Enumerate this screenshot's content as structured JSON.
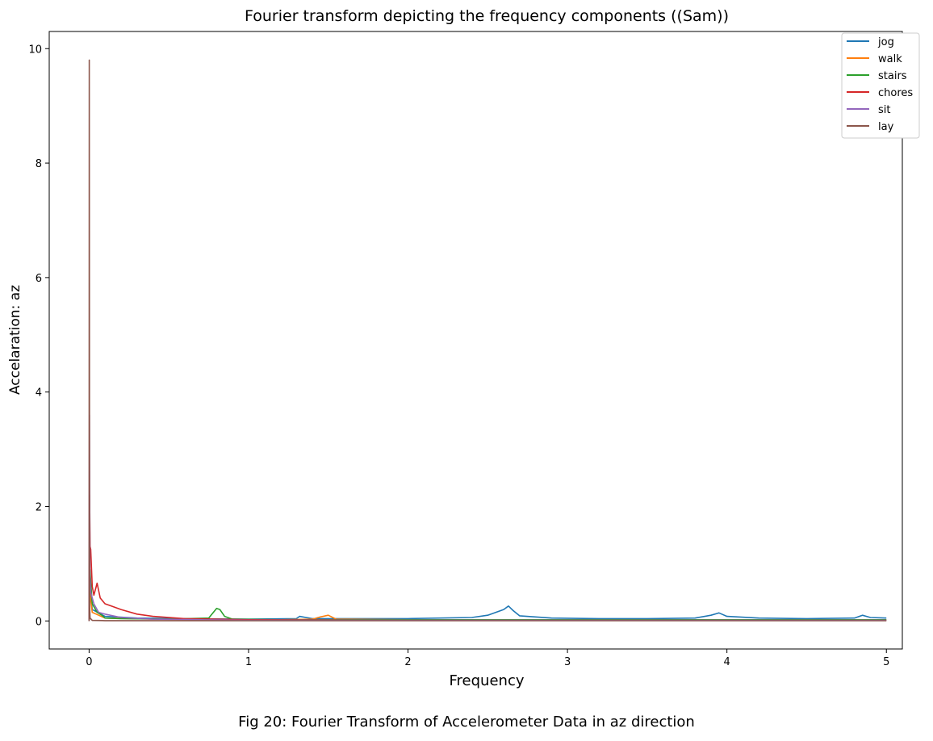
{
  "chart_data": {
    "type": "line",
    "title": "Fourier transform depicting the frequency components ((Sam))",
    "xlabel": "Frequency",
    "ylabel": "Accelaration: az",
    "xlim": [
      -0.25,
      5.1
    ],
    "ylim": [
      -0.49,
      10.3
    ],
    "xticks": [
      0,
      1,
      2,
      3,
      4,
      5
    ],
    "yticks": [
      0,
      2,
      4,
      6,
      8,
      10
    ],
    "grid": false,
    "legend_position": "top-right",
    "series": [
      {
        "name": "jog",
        "color": "#1f77b4",
        "x": [
          0,
          0.005,
          0.02,
          0.1,
          0.3,
          0.6,
          1.0,
          1.3,
          1.32,
          1.4,
          1.5,
          2.0,
          2.4,
          2.5,
          2.6,
          2.63,
          2.66,
          2.7,
          2.9,
          3.2,
          3.5,
          3.8,
          3.9,
          3.95,
          4.0,
          4.2,
          4.5,
          4.8,
          4.85,
          4.9,
          5.0
        ],
        "y": [
          0.0,
          0.6,
          0.2,
          0.08,
          0.05,
          0.04,
          0.03,
          0.04,
          0.08,
          0.04,
          0.04,
          0.04,
          0.06,
          0.1,
          0.2,
          0.26,
          0.18,
          0.09,
          0.05,
          0.04,
          0.04,
          0.05,
          0.1,
          0.14,
          0.08,
          0.05,
          0.04,
          0.05,
          0.1,
          0.06,
          0.05
        ]
      },
      {
        "name": "walk",
        "color": "#ff7f0e",
        "x": [
          0,
          0.005,
          0.02,
          0.1,
          0.4,
          0.8,
          1.2,
          1.4,
          1.45,
          1.5,
          1.55,
          2.0,
          3.0,
          4.0,
          5.0
        ],
        "y": [
          0.0,
          0.5,
          0.15,
          0.05,
          0.03,
          0.02,
          0.02,
          0.03,
          0.07,
          0.1,
          0.03,
          0.02,
          0.02,
          0.02,
          0.02
        ]
      },
      {
        "name": "stairs",
        "color": "#2ca02c",
        "x": [
          0,
          0.005,
          0.02,
          0.05,
          0.08,
          0.1,
          0.2,
          0.5,
          0.75,
          0.8,
          0.82,
          0.85,
          0.9,
          1.2,
          2.0,
          3.0,
          4.0,
          5.0
        ],
        "y": [
          0.0,
          0.9,
          0.3,
          0.15,
          0.1,
          0.05,
          0.04,
          0.03,
          0.05,
          0.22,
          0.2,
          0.08,
          0.03,
          0.02,
          0.02,
          0.02,
          0.02,
          0.02
        ]
      },
      {
        "name": "chores",
        "color": "#d62728",
        "x": [
          0,
          0.003,
          0.006,
          0.01,
          0.02,
          0.03,
          0.05,
          0.07,
          0.1,
          0.15,
          0.2,
          0.3,
          0.4,
          0.6,
          0.8,
          1.0,
          2.0,
          3.0,
          4.0,
          5.0
        ],
        "y": [
          0.0,
          2.2,
          1.3,
          1.25,
          0.6,
          0.45,
          0.66,
          0.4,
          0.3,
          0.25,
          0.2,
          0.12,
          0.08,
          0.04,
          0.03,
          0.02,
          0.01,
          0.01,
          0.01,
          0.01
        ]
      },
      {
        "name": "sit",
        "color": "#9467bd",
        "x": [
          0,
          0.002,
          0.005,
          0.01,
          0.03,
          0.06,
          0.1,
          0.2,
          0.4,
          0.7,
          1.0,
          2.0,
          3.0,
          4.0,
          5.0
        ],
        "y": [
          0.0,
          3.6,
          0.8,
          0.5,
          0.3,
          0.15,
          0.12,
          0.06,
          0.03,
          0.02,
          0.01,
          0.01,
          0.01,
          0.01,
          0.01
        ]
      },
      {
        "name": "lay",
        "color": "#8c564b",
        "x": [
          0,
          0.001,
          0.003,
          0.006,
          0.02,
          0.1,
          1.0,
          2.0,
          3.0,
          4.0,
          5.0
        ],
        "y": [
          0.0,
          9.8,
          0.3,
          0.05,
          0.01,
          0.005,
          0.003,
          0.003,
          0.003,
          0.003,
          0.003
        ]
      }
    ]
  },
  "caption": "Fig 20: Fourier Transform of Accelerometer Data in az direction"
}
